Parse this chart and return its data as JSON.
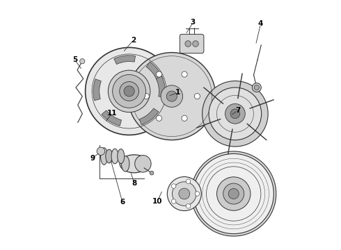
{
  "background_color": "#ffffff",
  "line_color": "#333333",
  "label_color": "#000000",
  "figsize": [
    4.9,
    3.6
  ],
  "dpi": 100
}
